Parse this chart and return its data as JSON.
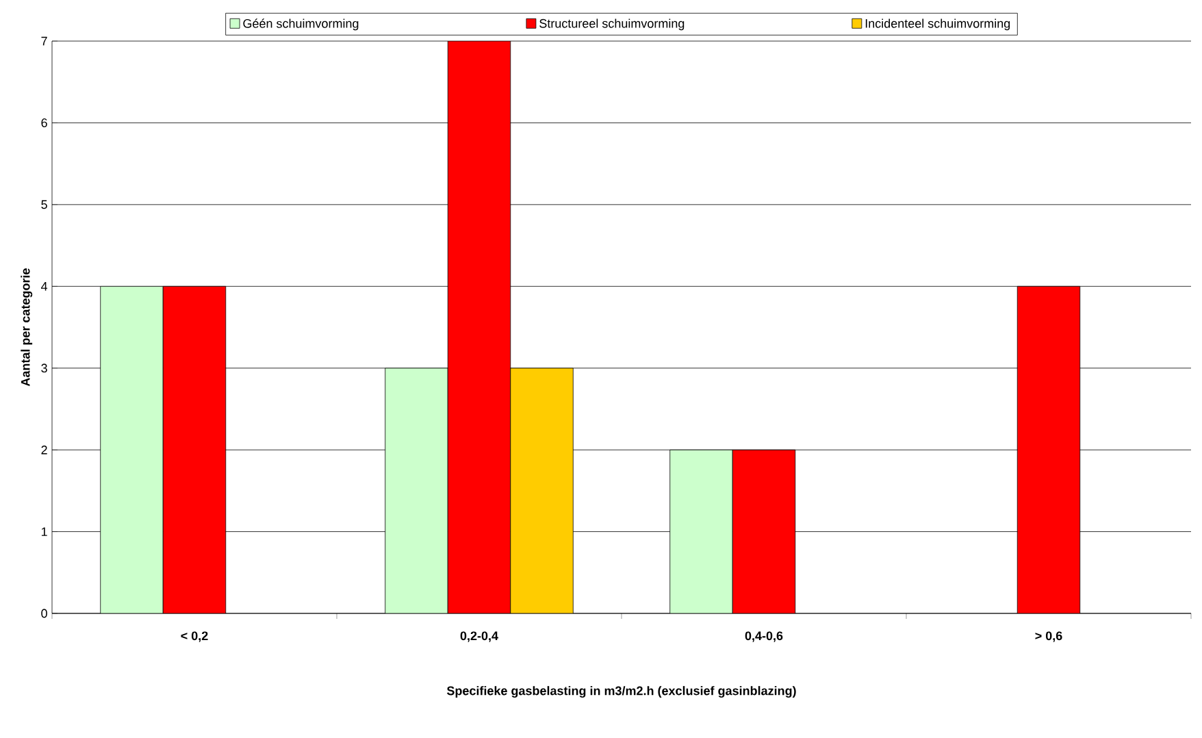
{
  "chart_data": {
    "type": "bar",
    "xlabel": "Specifieke gasbelasting in m3/m2.h (exclusief gasinblazing)",
    "ylabel": "Aantal per categorie",
    "categories": [
      "< 0,2",
      "0,2-0,4",
      "0,4-0,6",
      "> 0,6"
    ],
    "series": [
      {
        "name": "Géén schuimvorming",
        "color": "#ccffcc",
        "values": [
          4,
          3,
          2,
          null
        ]
      },
      {
        "name": "Structureel schuimvorming",
        "color": "#ff0000",
        "values": [
          4,
          7,
          2,
          4
        ]
      },
      {
        "name": "Incidenteel schuimvorming",
        "color": "#ffcc00",
        "values": [
          null,
          3,
          null,
          null
        ]
      }
    ],
    "ylim": [
      0,
      7
    ],
    "yticks": [
      0,
      1,
      2,
      3,
      4,
      5,
      6,
      7
    ],
    "grid": "y",
    "legend": "top"
  }
}
